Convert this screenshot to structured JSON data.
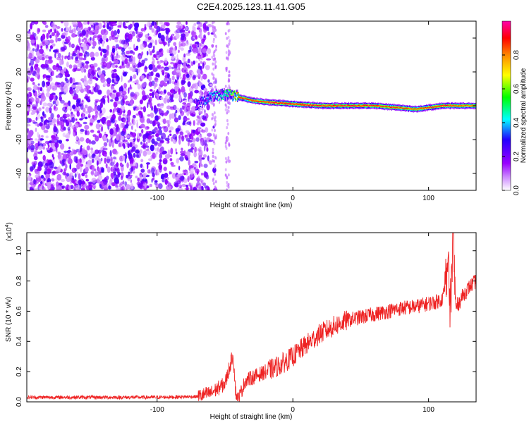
{
  "figure_title": "C2E4.2025.123.11.41.G05",
  "chart_data": [
    {
      "type": "heatmap",
      "title": "C2E4.2025.123.11.41.G05",
      "xlabel": "Height of straight line (km)",
      "ylabel": "Frequency (Hz)",
      "xlim": [
        -196,
        135
      ],
      "ylim": [
        -50,
        50
      ],
      "x_ticks": [
        -100,
        0,
        100
      ],
      "y_ticks": [
        -40,
        -20,
        0,
        20,
        40
      ],
      "colorbar": {
        "label": "Normalized spectral amplitude",
        "range": [
          0.0,
          1.0
        ],
        "ticks": [
          0.0,
          0.2,
          0.4,
          0.6,
          0.8
        ],
        "colors": [
          "#ffffff",
          "#9900ff",
          "#2200ff",
          "#00ffff",
          "#00ff00",
          "#ffff00",
          "#ff8800",
          "#ff0000",
          "#ff00aa"
        ]
      },
      "features": {
        "noise_region_x": [
          -196,
          -60
        ],
        "noise_level": 0.15,
        "ridge": [
          {
            "x": -72,
            "f": 0,
            "amp": 0.3
          },
          {
            "x": -62,
            "f": 5,
            "amp": 0.45
          },
          {
            "x": -48,
            "f": 7,
            "amp": 0.6
          },
          {
            "x": -40,
            "f": 5,
            "amp": 0.95
          },
          {
            "x": -30,
            "f": 3,
            "amp": 0.9
          },
          {
            "x": -18,
            "f": 2,
            "amp": 0.95
          },
          {
            "x": 0,
            "f": 1,
            "amp": 0.95
          },
          {
            "x": 20,
            "f": 0,
            "amp": 0.95
          },
          {
            "x": 60,
            "f": 0,
            "amp": 0.95
          },
          {
            "x": 90,
            "f": -2,
            "amp": 0.9
          },
          {
            "x": 110,
            "f": 0,
            "amp": 0.95
          },
          {
            "x": 135,
            "f": 0,
            "amp": 0.85
          }
        ]
      }
    },
    {
      "type": "line",
      "xlabel": "Height of straight line (km)",
      "ylabel": "SNR (10 * v/v)",
      "multiplier_label": "(x10",
      "multiplier_exp": "4",
      "multiplier_close": ")",
      "xlim": [
        -196,
        135
      ],
      "ylim": [
        0.0,
        1.12
      ],
      "x_ticks": [
        -100,
        0,
        100
      ],
      "y_ticks": [
        0.0,
        0.2,
        0.4,
        0.6,
        0.8,
        1.0
      ],
      "line_color": "#ee2222",
      "series": [
        {
          "x": [
            -196,
            -150,
            -100,
            -70,
            -60,
            -50,
            -46,
            -44,
            -42,
            -40,
            -38,
            -35,
            -30,
            -20,
            -10,
            0,
            10,
            20,
            30,
            40,
            50,
            60,
            70,
            80,
            90,
            100,
            105,
            110,
            112,
            114,
            116,
            118,
            120,
            125,
            130,
            135
          ],
          "values": [
            0.03,
            0.03,
            0.03,
            0.035,
            0.06,
            0.12,
            0.25,
            0.32,
            0.05,
            0.02,
            0.07,
            0.14,
            0.16,
            0.2,
            0.24,
            0.3,
            0.38,
            0.45,
            0.5,
            0.54,
            0.56,
            0.58,
            0.6,
            0.62,
            0.63,
            0.65,
            0.66,
            0.68,
            0.75,
            0.95,
            0.6,
            1.12,
            0.62,
            0.7,
            0.76,
            0.8
          ]
        }
      ]
    }
  ]
}
